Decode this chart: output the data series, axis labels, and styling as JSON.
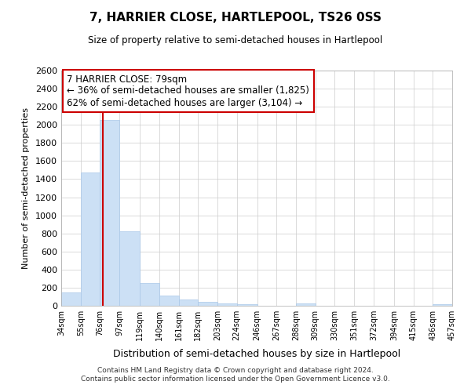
{
  "title": "7, HARRIER CLOSE, HARTLEPOOL, TS26 0SS",
  "subtitle": "Size of property relative to semi-detached houses in Hartlepool",
  "xlabel": "Distribution of semi-detached houses by size in Hartlepool",
  "ylabel": "Number of semi-detached properties",
  "footnote1": "Contains HM Land Registry data © Crown copyright and database right 2024.",
  "footnote2": "Contains public sector information licensed under the Open Government Licence v3.0.",
  "annotation_line1": "7 HARRIER CLOSE: 79sqm",
  "annotation_line2": "← 36% of semi-detached houses are smaller (1,825)",
  "annotation_line3": "62% of semi-detached houses are larger (3,104) →",
  "property_size": 79,
  "bar_left_edges": [
    34,
    55,
    76,
    97,
    119,
    140,
    161,
    182,
    203,
    224,
    246,
    267,
    288,
    309,
    330,
    351,
    372,
    394,
    415,
    436
  ],
  "bar_widths": [
    21,
    21,
    21,
    22,
    21,
    21,
    21,
    21,
    21,
    22,
    21,
    21,
    21,
    21,
    21,
    21,
    22,
    21,
    21,
    21
  ],
  "bar_heights": [
    150,
    1475,
    2050,
    825,
    255,
    115,
    70,
    45,
    25,
    20,
    0,
    0,
    25,
    0,
    0,
    0,
    0,
    0,
    0,
    20
  ],
  "bar_color": "#cce0f5",
  "bar_edge_color": "#aac8e8",
  "grid_color": "#cccccc",
  "red_line_color": "#cc0000",
  "annotation_box_color": "#cc0000",
  "xlim": [
    34,
    457
  ],
  "ylim": [
    0,
    2600
  ],
  "yticks": [
    0,
    200,
    400,
    600,
    800,
    1000,
    1200,
    1400,
    1600,
    1800,
    2000,
    2200,
    2400,
    2600
  ],
  "xtick_labels": [
    "34sqm",
    "55sqm",
    "76sqm",
    "97sqm",
    "119sqm",
    "140sqm",
    "161sqm",
    "182sqm",
    "203sqm",
    "224sqm",
    "246sqm",
    "267sqm",
    "288sqm",
    "309sqm",
    "330sqm",
    "351sqm",
    "372sqm",
    "394sqm",
    "415sqm",
    "436sqm",
    "457sqm"
  ],
  "xtick_positions": [
    34,
    55,
    76,
    97,
    119,
    140,
    161,
    182,
    203,
    224,
    246,
    267,
    288,
    309,
    330,
    351,
    372,
    394,
    415,
    436,
    457
  ]
}
